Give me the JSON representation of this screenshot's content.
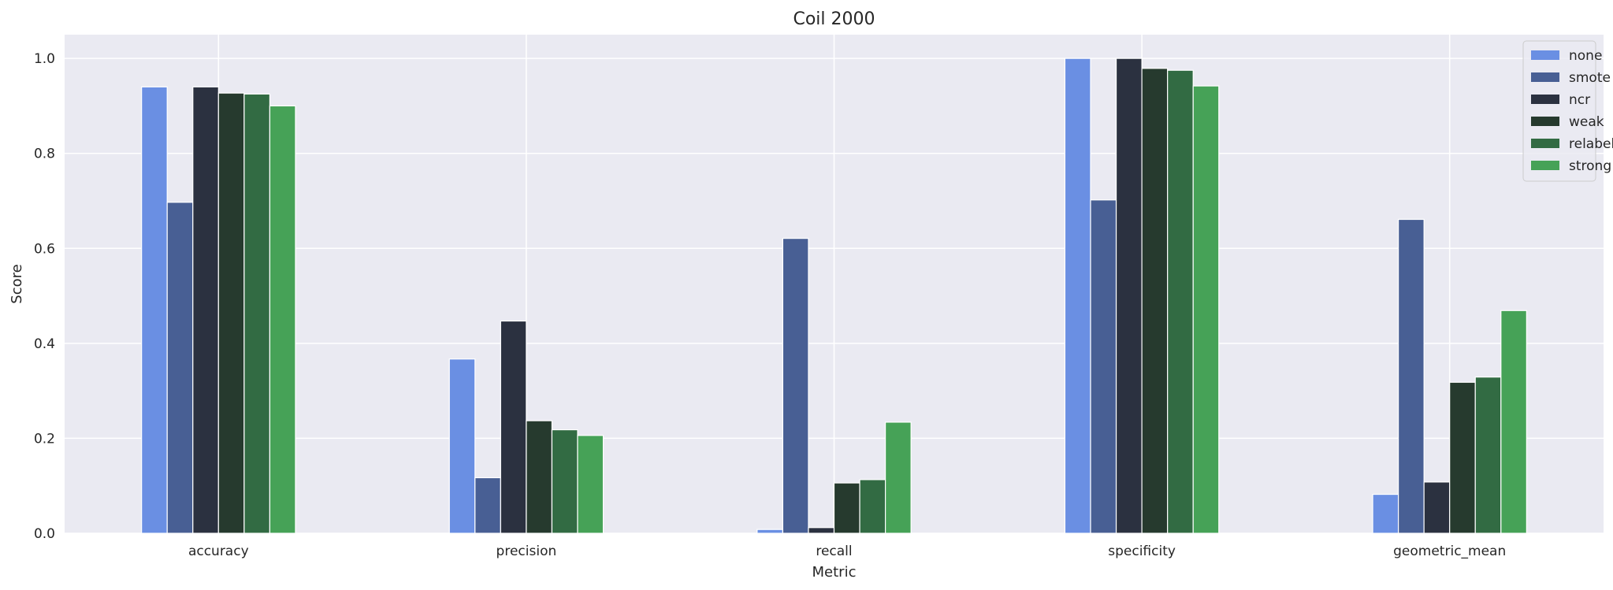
{
  "chart_data": {
    "type": "bar",
    "title": "Coil 2000",
    "xlabel": "Metric",
    "ylabel": "Score",
    "categories": [
      "accuracy",
      "precision",
      "recall",
      "specificity",
      "geometric_mean"
    ],
    "ylim": [
      0,
      1.05
    ],
    "yticks": [
      "0.0",
      "0.2",
      "0.4",
      "0.6",
      "0.8",
      "1.0"
    ],
    "grid": true,
    "legend_position": "top-right",
    "colors": {
      "background": "#eaeaf2",
      "grid": "#ffffff"
    },
    "series": [
      {
        "name": "none",
        "color": "#6a8fe3",
        "values": [
          0.94,
          0.367,
          0.008,
          1.0,
          0.082
        ]
      },
      {
        "name": "smote",
        "color": "#485f94",
        "values": [
          0.697,
          0.117,
          0.621,
          0.702,
          0.661
        ]
      },
      {
        "name": "ncr",
        "color": "#2b3140",
        "values": [
          0.94,
          0.447,
          0.012,
          1.0,
          0.108
        ]
      },
      {
        "name": "weak",
        "color": "#263a2e",
        "values": [
          0.927,
          0.237,
          0.106,
          0.979,
          0.318
        ]
      },
      {
        "name": "relabel",
        "color": "#326b43",
        "values": [
          0.925,
          0.218,
          0.113,
          0.975,
          0.329
        ]
      },
      {
        "name": "strong",
        "color": "#46a257",
        "values": [
          0.9,
          0.206,
          0.234,
          0.942,
          0.469
        ]
      }
    ]
  }
}
